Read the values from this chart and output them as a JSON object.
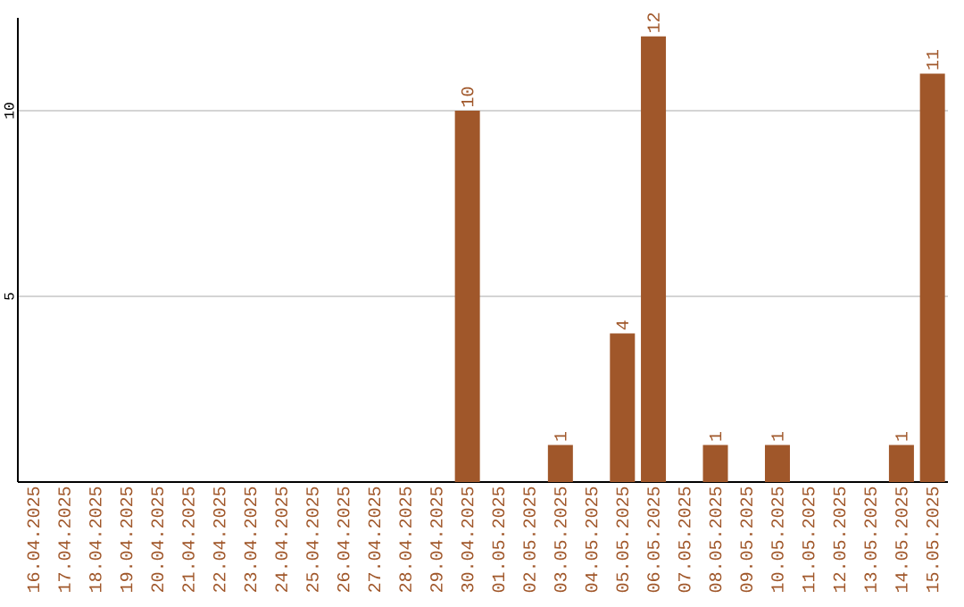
{
  "chart_data": {
    "type": "bar",
    "categories": [
      "16.04.2025",
      "17.04.2025",
      "18.04.2025",
      "19.04.2025",
      "20.04.2025",
      "21.04.2025",
      "22.04.2025",
      "23.04.2025",
      "24.04.2025",
      "25.04.2025",
      "26.04.2025",
      "27.04.2025",
      "28.04.2025",
      "29.04.2025",
      "30.04.2025",
      "01.05.2025",
      "02.05.2025",
      "03.05.2025",
      "04.05.2025",
      "05.05.2025",
      "06.05.2025",
      "07.05.2025",
      "08.05.2025",
      "09.05.2025",
      "10.05.2025",
      "11.05.2025",
      "12.05.2025",
      "13.05.2025",
      "14.05.2025",
      "15.05.2025"
    ],
    "values": [
      0,
      0,
      0,
      0,
      0,
      0,
      0,
      0,
      0,
      0,
      0,
      0,
      0,
      0,
      10,
      0,
      0,
      1,
      0,
      4,
      12,
      0,
      1,
      0,
      1,
      0,
      0,
      0,
      1,
      11
    ],
    "value_labels": [
      null,
      null,
      null,
      null,
      null,
      null,
      null,
      null,
      null,
      null,
      null,
      null,
      null,
      null,
      "10",
      null,
      null,
      "1",
      null,
      "4",
      "12",
      null,
      "1",
      null,
      "1",
      null,
      null,
      null,
      "1",
      "11"
    ],
    "color": "#a0572a",
    "ylim": [
      0,
      12.5
    ],
    "yticks": [
      5,
      10
    ],
    "grid": "y"
  }
}
